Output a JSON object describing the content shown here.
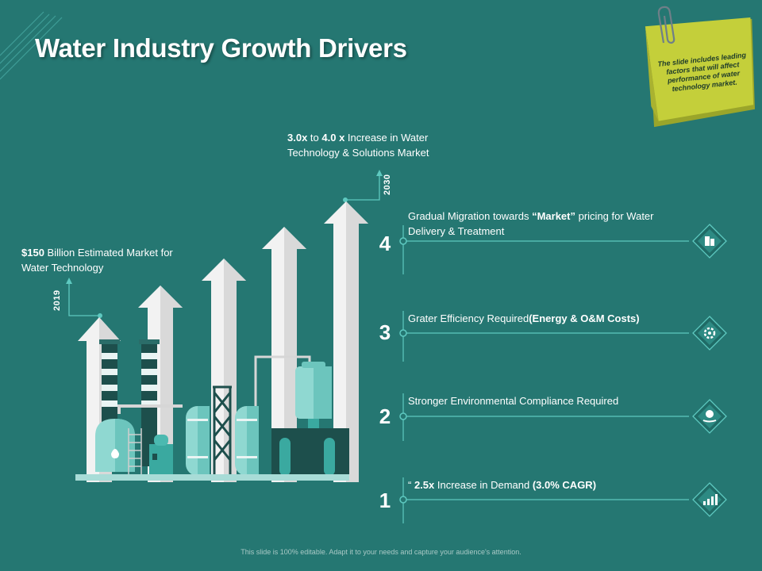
{
  "title": "Water Industry Growth Drivers",
  "sticky_note": "The slide includes leading factors that will affect performance of water technology market.",
  "milestone_2030": {
    "year": "2030",
    "text_part1": "3.0x",
    "text_part2": " to ",
    "text_part3": "4.0 x",
    "text_part4": " Increase in Water Technology & Solutions Market"
  },
  "milestone_2019": {
    "year": "2019",
    "text_part1": "$150",
    "text_part2": " Billion Estimated Market for Water Technology"
  },
  "drivers": [
    {
      "number": "4",
      "text_a": "Gradual Migration towards ",
      "text_b": "“Market”",
      "text_c": " pricing for Water Delivery & Treatment",
      "icon": "building-icon"
    },
    {
      "number": "3",
      "text_a": "Grater Efficiency Required",
      "text_b": "(Energy & O&M Costs)",
      "text_c": "",
      "icon": "gear-icon"
    },
    {
      "number": "2",
      "text_a": "Stronger Environmental Compliance Required",
      "text_b": "",
      "text_c": "",
      "icon": "globe-hand-icon"
    },
    {
      "number": "1",
      "text_a": "“ ",
      "text_b": "2.5x",
      "text_c": " Increase in Demand ",
      "text_d": "(3.0% CAGR)",
      "icon": "bar-chart-icon"
    }
  ],
  "footer": "This slide is 100% editable. Adapt it to your needs and capture your audience's attention.",
  "colors": {
    "background": "#257772",
    "accent": "#5ec9c0",
    "sticky": "#c4cf3a"
  }
}
